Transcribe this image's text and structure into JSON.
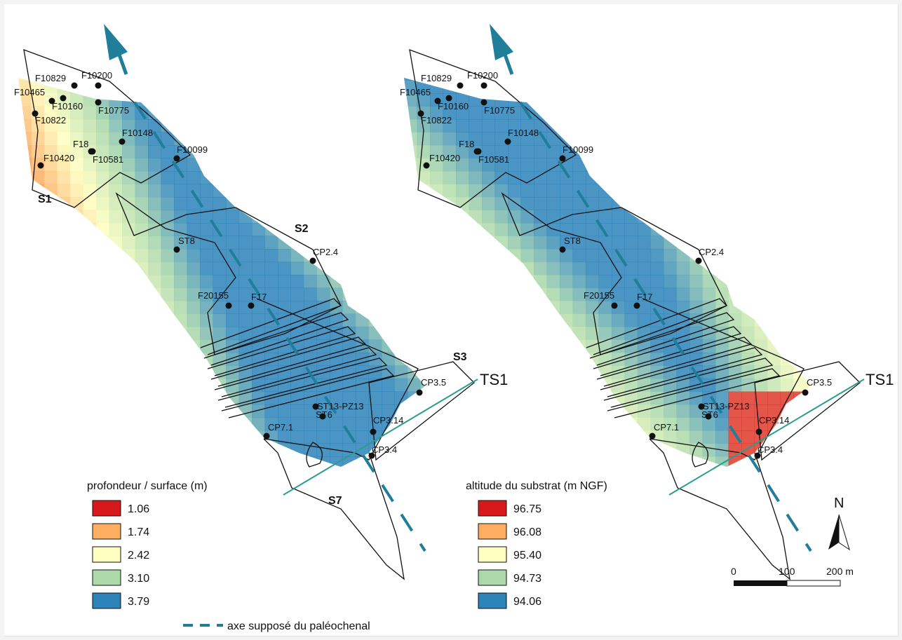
{
  "maps": [
    {
      "id": "depth",
      "legend_title": "profondeur / surface (m)",
      "legend": [
        {
          "value": "1.06",
          "color": "#d7191c"
        },
        {
          "value": "1.74",
          "color": "#fdae61"
        },
        {
          "value": "2.42",
          "color": "#ffffbf"
        },
        {
          "value": "3.10",
          "color": "#abd9a9"
        },
        {
          "value": "3.79",
          "color": "#2b83ba"
        }
      ],
      "sections": [
        "S1",
        "S2",
        "S3",
        "S7"
      ]
    },
    {
      "id": "altitude",
      "legend_title": "altitude du substrat (m NGF)",
      "legend": [
        {
          "value": "96.75",
          "color": "#d7191c"
        },
        {
          "value": "96.08",
          "color": "#fdae61"
        },
        {
          "value": "95.40",
          "color": "#ffffbf"
        },
        {
          "value": "94.73",
          "color": "#abd9a9"
        },
        {
          "value": "94.06",
          "color": "#2b83ba"
        }
      ]
    }
  ],
  "points": [
    "F10829",
    "F10200",
    "F10465",
    "F10160",
    "F10775",
    "F10822",
    "F10148",
    "F18",
    "F10099",
    "F10420",
    "F10581",
    "ST8",
    "CP2.4",
    "F20155",
    "F17",
    "ST13-PZ13",
    "ST6",
    "CP3.5",
    "CP3.14",
    "CP7.1",
    "CP3.4"
  ],
  "transect": "TS1",
  "channel_legend": "axe supposé du paléochenal",
  "channel_color": "#1f7f9a",
  "transect_color": "#2a9d8f",
  "north_label": "N",
  "scale": {
    "ticks": [
      "0",
      "100",
      "200 m"
    ]
  }
}
